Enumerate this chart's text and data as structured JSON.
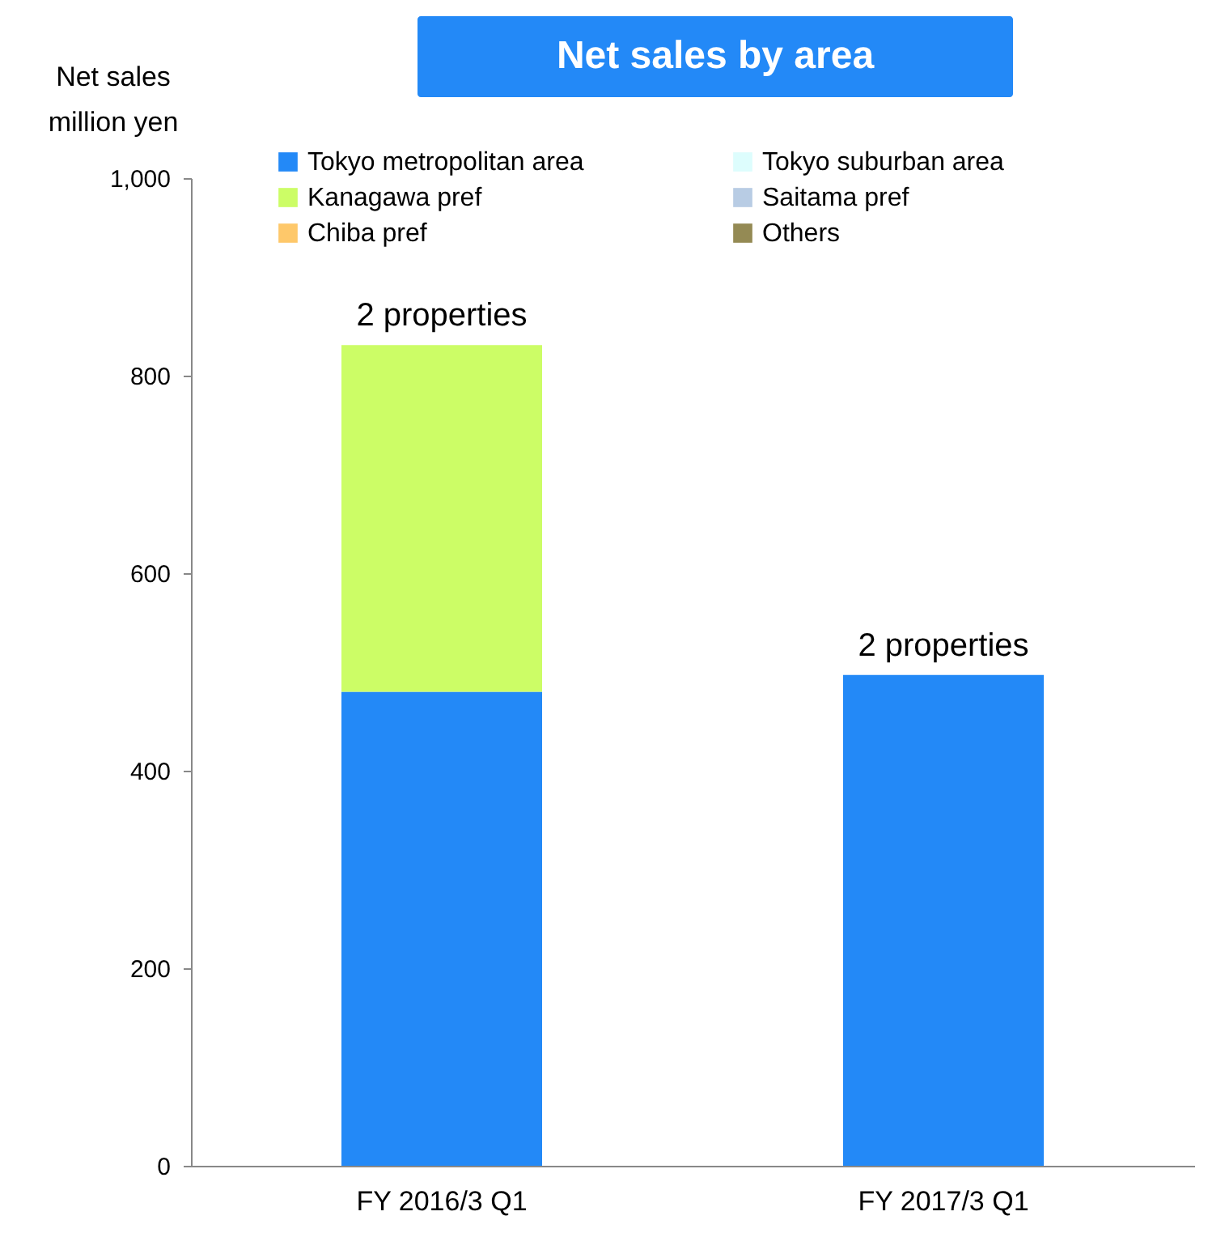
{
  "chart_data": {
    "type": "bar",
    "title": "Net sales by area",
    "ylabel": "Net sales\nmillion yen",
    "stacked": true,
    "categories": [
      "FY 2016/3 Q1",
      "FY 2017/3 Q1"
    ],
    "series": [
      {
        "name": "Tokyo metropolitan area",
        "color": "#2389f7",
        "values": [
          480,
          497
        ]
      },
      {
        "name": "Tokyo suburban area",
        "color": "#ddfdfd",
        "values": [
          null,
          null
        ]
      },
      {
        "name": "Kanagawa pref",
        "color": "#ccfd66",
        "values": [
          351,
          null
        ]
      },
      {
        "name": "Saitama pref",
        "color": "#b8cce4",
        "values": [
          null,
          null
        ]
      },
      {
        "name": "Chiba pref",
        "color": "#fec86a",
        "values": [
          null,
          null
        ]
      },
      {
        "name": "Others",
        "color": "#948a54",
        "values": [
          null,
          null
        ]
      }
    ],
    "annotations": [
      {
        "text": "2 properties",
        "x": "FY 2016/3 Q1",
        "y": 831
      },
      {
        "text": "2 properties",
        "x": "FY 2017/3 Q1",
        "y": 497
      }
    ],
    "ylim": [
      0,
      1000
    ],
    "yticks": [
      0,
      200,
      400,
      600,
      800,
      {
        "value": 1000,
        "label": "1,000"
      }
    ],
    "grid": false,
    "legend": "top"
  }
}
